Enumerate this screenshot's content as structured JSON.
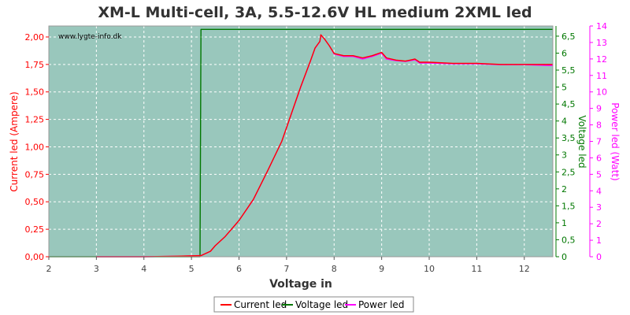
{
  "chart_data": {
    "type": "line",
    "title": "XM-L Multi-cell, 3A, 5.5-12.6V HL medium 2XML led",
    "xlabel": "Voltage in",
    "watermark": "www.lygte-info.dk",
    "grid": true,
    "legend_position": "bottom-center",
    "x_axis": {
      "min": 2,
      "max": 12.6,
      "ticks": [
        2,
        3,
        4,
        5,
        6,
        7,
        8,
        9,
        10,
        11,
        12
      ],
      "tick_labels": [
        "2",
        "3",
        "4",
        "5",
        "6",
        "7",
        "8",
        "9",
        "10",
        "11",
        "12"
      ]
    },
    "y_left": {
      "label": "Current led (Ampere)",
      "min": 0,
      "max": 2.1,
      "color": "#ff0000",
      "ticks": [
        0,
        0.25,
        0.5,
        0.75,
        1.0,
        1.25,
        1.5,
        1.75,
        2.0
      ],
      "tick_labels": [
        "0,00",
        "0,25",
        "0,50",
        "0,75",
        "1,00",
        "1,25",
        "1,50",
        "1,75",
        "2,00"
      ]
    },
    "y_right_1": {
      "label": "Voltage led",
      "min": 0,
      "max": 6.8,
      "color": "#007700",
      "ticks": [
        0,
        0.5,
        1,
        1.5,
        2,
        2.5,
        3,
        3.5,
        4,
        4.5,
        5,
        5.5,
        6,
        6.5
      ],
      "tick_labels": [
        "0",
        "0,5",
        "1",
        "1,5",
        "2",
        "2,5",
        "3",
        "3,5",
        "4",
        "4,5",
        "5",
        "5,5",
        "6",
        "6,5"
      ]
    },
    "y_right_2": {
      "label": "Power led (Watt)",
      "min": 0,
      "max": 14,
      "color": "#ff00ff",
      "ticks": [
        0,
        1,
        2,
        3,
        4,
        5,
        6,
        7,
        8,
        9,
        10,
        11,
        12,
        13,
        14
      ],
      "tick_labels": [
        "0",
        "1",
        "2",
        "3",
        "4",
        "5",
        "6",
        "7",
        "8",
        "9",
        "10",
        "11",
        "12",
        "13",
        "14"
      ]
    },
    "series": [
      {
        "name": "Current led",
        "color": "#ff0000",
        "axis": "left",
        "x": [
          3.0,
          4.0,
          4.7,
          5.2,
          5.25,
          5.4,
          5.5,
          5.7,
          6.0,
          6.3,
          6.6,
          6.9,
          7.1,
          7.3,
          7.5,
          7.6,
          7.7,
          7.72,
          7.8,
          7.9,
          8.0,
          8.2,
          8.4,
          8.6,
          8.8,
          9.0,
          9.1,
          9.3,
          9.5,
          9.6,
          9.7,
          9.8,
          10.0,
          10.5,
          11.0,
          11.5,
          12.0,
          12.5,
          12.6
        ],
        "values": [
          0.0,
          0.0,
          0.005,
          0.01,
          0.02,
          0.05,
          0.1,
          0.18,
          0.33,
          0.52,
          0.78,
          1.05,
          1.3,
          1.55,
          1.78,
          1.9,
          1.96,
          2.02,
          1.98,
          1.92,
          1.85,
          1.83,
          1.83,
          1.81,
          1.83,
          1.86,
          1.81,
          1.79,
          1.78,
          1.79,
          1.8,
          1.77,
          1.77,
          1.76,
          1.76,
          1.75,
          1.75,
          1.75,
          1.75
        ]
      },
      {
        "name": "Voltage led",
        "color": "#007700",
        "axis": "right1",
        "x": [
          2.0,
          5.18,
          5.2,
          12.6
        ],
        "values": [
          0.0,
          0.0,
          6.7,
          6.7
        ]
      },
      {
        "name": "Power led",
        "color": "#ff00ff",
        "axis": "right2",
        "x": [
          3.0,
          4.0,
          4.7,
          5.2,
          5.25,
          5.4,
          5.5,
          5.7,
          6.0,
          6.3,
          6.6,
          6.9,
          7.1,
          7.3,
          7.5,
          7.6,
          7.7,
          7.72,
          7.8,
          7.9,
          8.0,
          8.2,
          8.4,
          8.6,
          8.8,
          9.0,
          9.1,
          9.3,
          9.5,
          9.6,
          9.7,
          9.8,
          10.0,
          10.5,
          11.0,
          11.5,
          12.0,
          12.5,
          12.6
        ],
        "values": [
          0.0,
          0.0,
          0.03,
          0.07,
          0.13,
          0.33,
          0.67,
          1.2,
          2.2,
          3.45,
          5.2,
          7.0,
          8.65,
          10.3,
          11.85,
          12.65,
          13.05,
          13.45,
          13.2,
          12.8,
          12.3,
          12.15,
          12.15,
          12.0,
          12.15,
          12.35,
          12.0,
          11.9,
          11.85,
          11.9,
          11.95,
          11.75,
          11.75,
          11.7,
          11.7,
          11.65,
          11.65,
          11.6,
          11.6
        ]
      }
    ]
  }
}
